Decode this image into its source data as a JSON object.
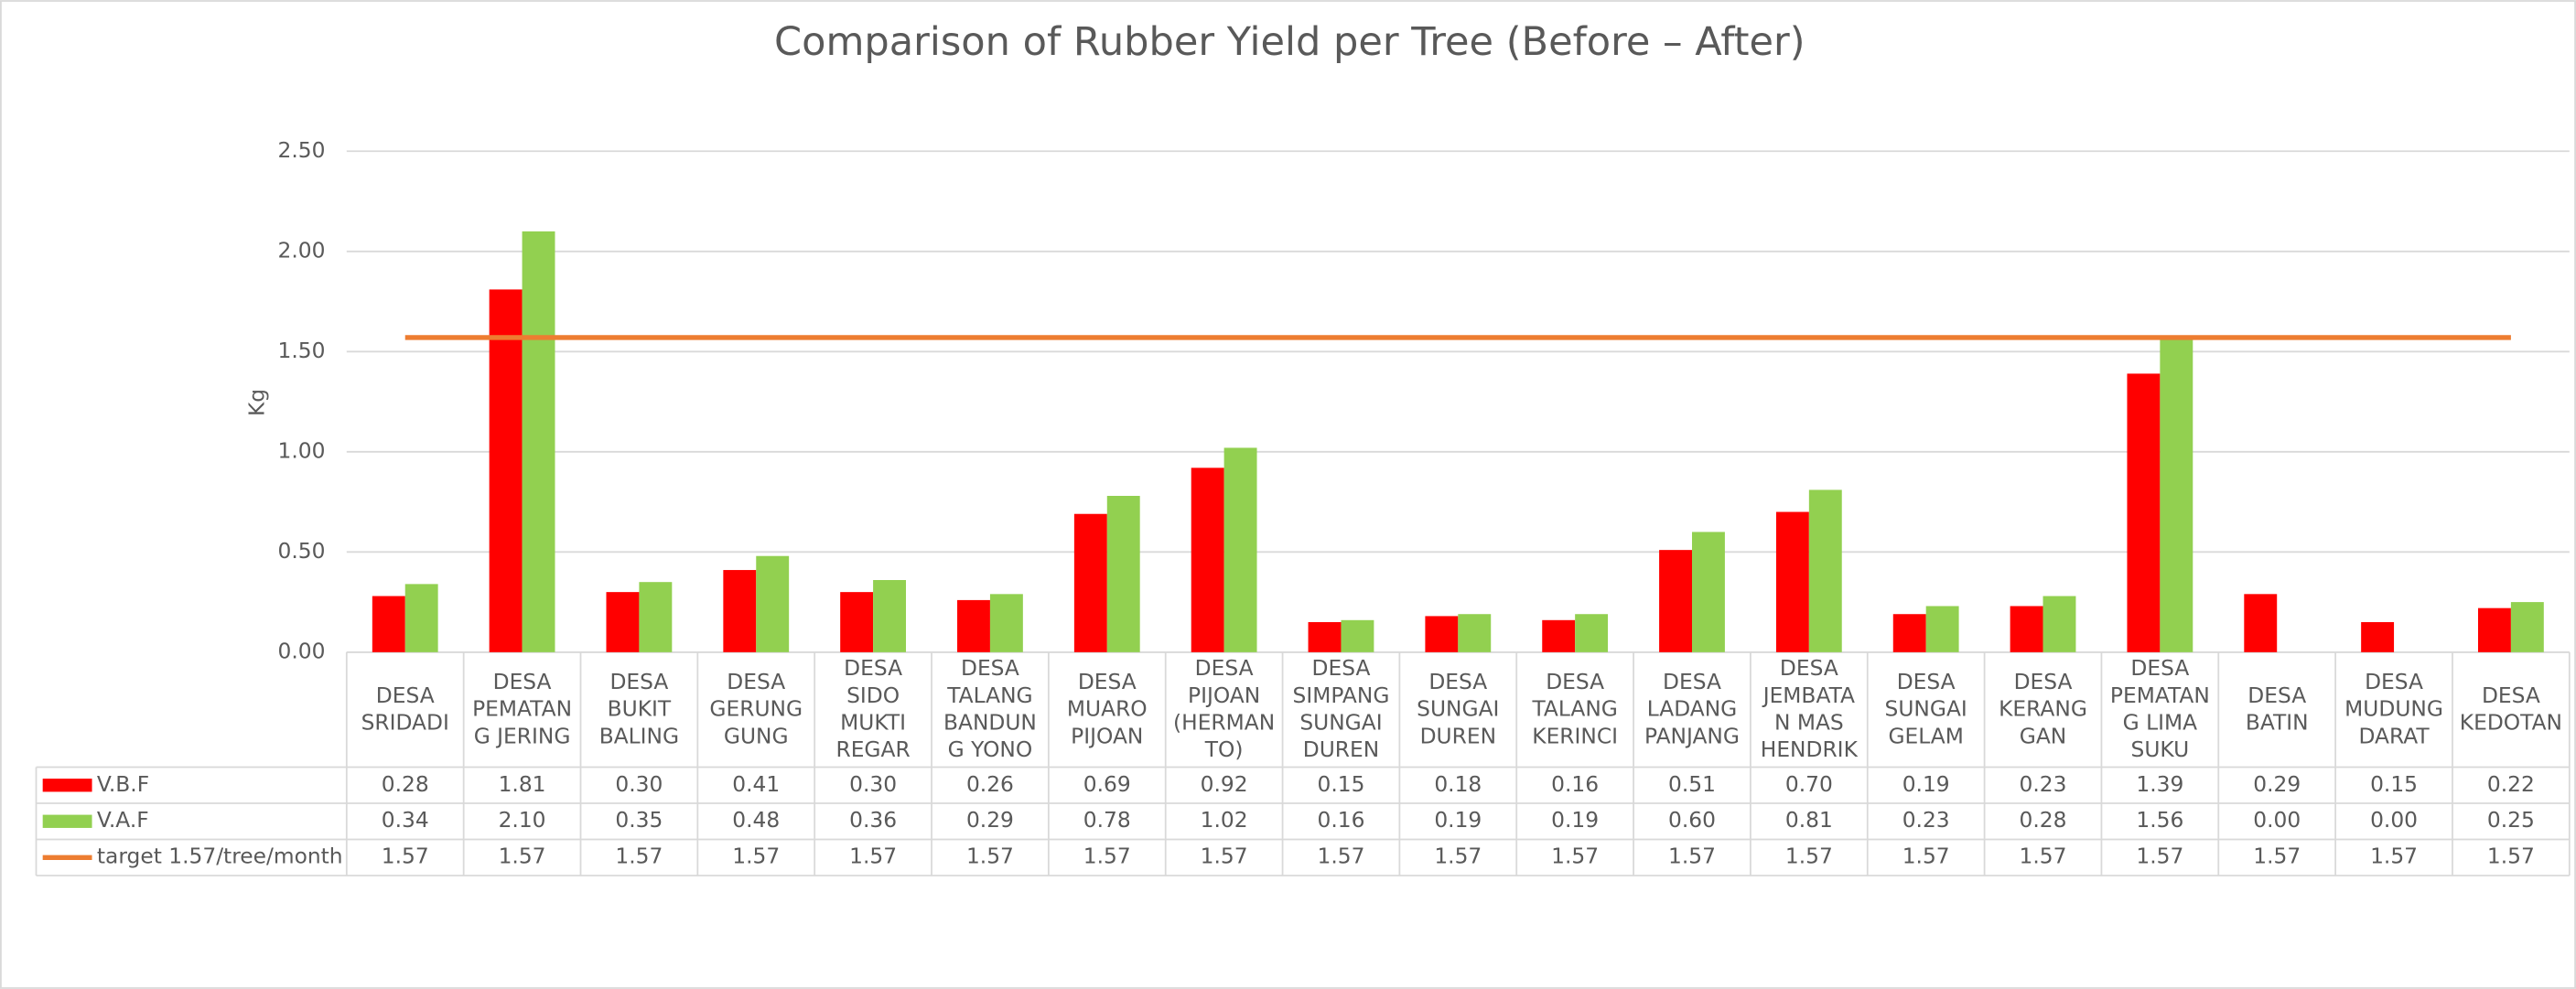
{
  "chart_data": {
    "type": "bar",
    "title": "Comparison of Rubber Yield per Tree (Before – After)",
    "y_label": "Kg",
    "categories": [
      "DESA SRIDADI",
      "DESA PEMATANG JERING",
      "DESA BUKIT BALING",
      "DESA GERUNG GUNG",
      "DESA SIDO MUKTI REGAR",
      "DESA TALANG BANDUNG YONO",
      "DESA MUARO PIJOAN",
      "DESA PIJOAN (HERMANTO)",
      "DESA SIMPANG SUNGAI DUREN",
      "DESA SUNGAI DUREN",
      "DESA TALANG KERINCI",
      "DESA LADANG PANJANG",
      "DESA JEMBATAN MAS HENDRIK",
      "DESA SUNGAI GELAM",
      "DESA KERANG GAN",
      "DESA PEMATANG LIMA SUKU",
      "DESA BATIN",
      "DESA MUDUNG DARAT",
      "DESA KEDOTAN"
    ],
    "series": [
      {
        "name": "V.B.F",
        "type": "bar",
        "color": "#ff0000",
        "values": [
          0.28,
          1.81,
          0.3,
          0.41,
          0.3,
          0.26,
          0.69,
          0.92,
          0.15,
          0.18,
          0.16,
          0.51,
          0.7,
          0.19,
          0.23,
          1.39,
          0.29,
          0.15,
          0.22
        ],
        "value_labels": [
          "0.28",
          "1.81",
          "0.30",
          "0.41",
          "0.30",
          "0.26",
          "0.69",
          "0.92",
          "0.15",
          "0.18",
          "0.16",
          "0.51",
          "0.70",
          "0.19",
          "0.23",
          "1.39",
          "0.29",
          "0.15",
          "0.22"
        ]
      },
      {
        "name": "V.A.F",
        "type": "bar",
        "color": "#92d050",
        "values": [
          0.34,
          2.1,
          0.35,
          0.48,
          0.36,
          0.29,
          0.78,
          1.02,
          0.16,
          0.19,
          0.19,
          0.6,
          0.81,
          0.23,
          0.28,
          1.56,
          0,
          0,
          0.25
        ],
        "value_labels": [
          "0.34",
          "2.10",
          "0.35",
          "0.48",
          "0.36",
          "0.29",
          "0.78",
          "1.02",
          "0.16",
          "0.19",
          "0.19",
          "0.60",
          "0.81",
          "0.23",
          "0.28",
          "1.56",
          "0.00",
          "0.00",
          "0.25"
        ]
      },
      {
        "name": "target 1.57/tree/month",
        "type": "line",
        "color": "#ed7d31",
        "values": [
          1.57,
          1.57,
          1.57,
          1.57,
          1.57,
          1.57,
          1.57,
          1.57,
          1.57,
          1.57,
          1.57,
          1.57,
          1.57,
          1.57,
          1.57,
          1.57,
          1.57,
          1.57,
          1.57
        ]
      }
    ],
    "ylim": [
      0,
      2.5
    ],
    "yticks": [
      {
        "value": 0,
        "label": "0.00"
      },
      {
        "value": 0.5,
        "label": "0.50"
      },
      {
        "value": 1,
        "label": "1.00"
      },
      {
        "value": 1.5,
        "label": "1.50"
      },
      {
        "value": 2,
        "label": "2.00"
      },
      {
        "value": 2.5,
        "label": "2.50"
      }
    ],
    "grid": true
  }
}
